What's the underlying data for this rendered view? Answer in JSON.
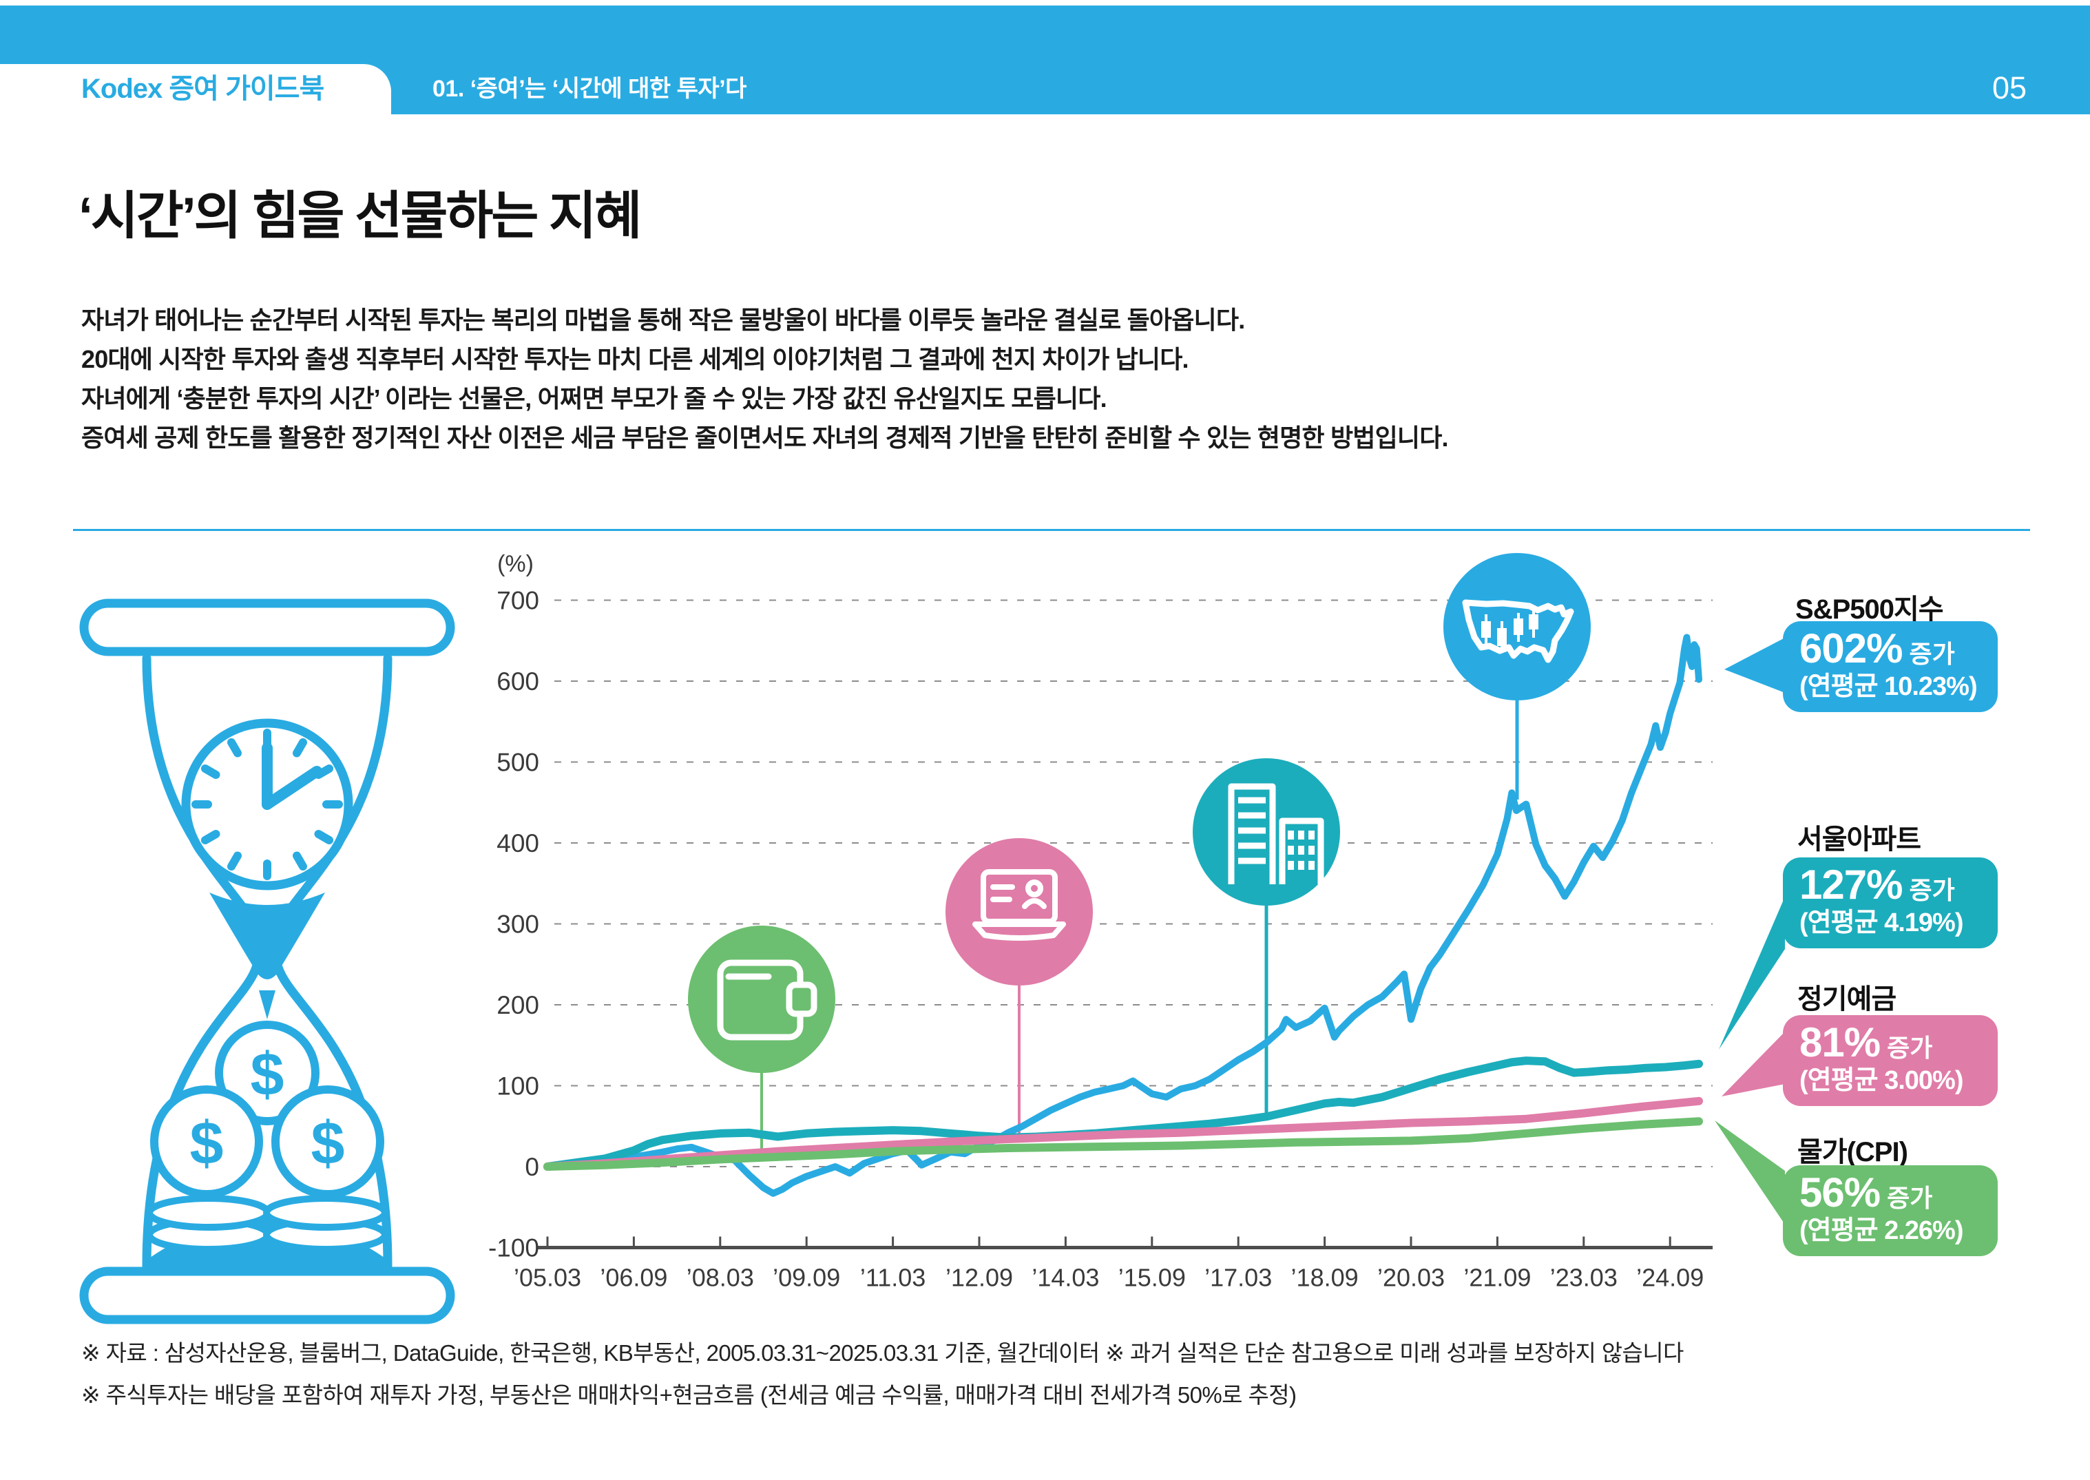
{
  "header": {
    "brand": "Kodex 증여 가이드북",
    "section": "01. ‘증여’는 ‘시간에 대한 투자’다",
    "page_number": "05",
    "accent": "#29ABE2"
  },
  "title": "‘시간’의 힘을 선물하는 지혜",
  "paragraph": [
    "자녀가 태어나는 순간부터 시작된 투자는 복리의 마법을 통해 작은 물방울이 바다를 이루듯 놀라운 결실로 돌아옵니다.",
    "20대에 시작한 투자와 출생 직후부터 시작한 투자는 마치 다른 세계의 이야기처럼 그 결과에 천지 차이가 납니다.",
    "자녀에게 ‘충분한 투자의 시간’ 이라는 선물은, 어쩌면 부모가 줄 수 있는 가장 값진 유산일지도 모릅니다.",
    "증여세 공제 한도를 활용한 정기적인 자산 이전은 세금 부담은 줄이면서도 자녀의 경제적 기반을 탄탄히 준비할 수 있는 현명한 방법입니다."
  ],
  "footnotes": [
    "※ 자료 : 삼성자산운용, 블룸버그, DataGuide, 한국은행, KB부동산, 2005.03.31~2025.03.31 기준, 월간데이터  ※ 과거 실적은 단순 참고용으로 미래 성과를 보장하지 않습니다",
    "※ 주식투자는 배당을 포함하여 재투자 가정, 부동산은 매매차익+현금흐름 (전세금 예금 수익률, 매매가격 대비 전세가격 50%로 추정)"
  ],
  "callouts": [
    {
      "title": "S&P500지수",
      "pct": "602%",
      "suffix": "증가",
      "avg": "(연평균 10.23%)",
      "color": "#29ABE2"
    },
    {
      "title": "서울아파트",
      "pct": "127%",
      "suffix": "증가",
      "avg": "(연평균 4.19%)",
      "color": "#1CADBC"
    },
    {
      "title": "정기예금",
      "pct": "81%",
      "suffix": "증가",
      "avg": "(연평균 3.00%)",
      "color": "#E07CA8"
    },
    {
      "title": "물가(CPI)",
      "pct": "56%",
      "suffix": "증가",
      "avg": "(연평균 2.26%)",
      "color": "#6CBF70"
    }
  ],
  "chart_data": {
    "type": "line",
    "title": "",
    "ylabel": "(%)",
    "ylim": [
      -100,
      700
    ],
    "y_ticks": [
      700,
      600,
      500,
      400,
      300,
      200,
      100,
      0,
      -100
    ],
    "x_ticks": [
      "’05.03",
      "’06.09",
      "’08.03",
      "’09.09",
      "’11.03",
      "’12.09",
      "’14.03",
      "’15.09",
      "’17.03",
      "’18.09",
      "’20.03",
      "’21.09",
      "’23.03",
      "’24.09"
    ],
    "x_range_years": [
      2005.25,
      2025.25
    ],
    "grid": true,
    "legend_position": "right",
    "series": [
      {
        "key": "sp500",
        "name": "S&P500지수",
        "color": "#29ABE2",
        "final_pct": 602,
        "cagr_pct": 10.23,
        "points": [
          [
            2005.25,
            0
          ],
          [
            2005.5,
            2
          ],
          [
            2005.75,
            5
          ],
          [
            2006.0,
            7
          ],
          [
            2006.25,
            8
          ],
          [
            2006.5,
            6
          ],
          [
            2006.75,
            12
          ],
          [
            2007.0,
            15
          ],
          [
            2007.25,
            18
          ],
          [
            2007.5,
            22
          ],
          [
            2007.75,
            24
          ],
          [
            2008.0,
            18
          ],
          [
            2008.25,
            12
          ],
          [
            2008.5,
            8
          ],
          [
            2008.75,
            -10
          ],
          [
            2009.0,
            -26
          ],
          [
            2009.17,
            -33
          ],
          [
            2009.33,
            -28
          ],
          [
            2009.5,
            -20
          ],
          [
            2009.75,
            -12
          ],
          [
            2010.0,
            -6
          ],
          [
            2010.25,
            0
          ],
          [
            2010.5,
            -8
          ],
          [
            2010.75,
            4
          ],
          [
            2011.0,
            10
          ],
          [
            2011.25,
            16
          ],
          [
            2011.5,
            20
          ],
          [
            2011.67,
            8
          ],
          [
            2011.75,
            2
          ],
          [
            2012.0,
            10
          ],
          [
            2012.25,
            18
          ],
          [
            2012.5,
            16
          ],
          [
            2012.75,
            26
          ],
          [
            2013.0,
            32
          ],
          [
            2013.25,
            42
          ],
          [
            2013.5,
            50
          ],
          [
            2013.75,
            60
          ],
          [
            2014.0,
            70
          ],
          [
            2014.25,
            78
          ],
          [
            2014.5,
            86
          ],
          [
            2014.75,
            92
          ],
          [
            2015.0,
            96
          ],
          [
            2015.25,
            100
          ],
          [
            2015.42,
            106
          ],
          [
            2015.58,
            98
          ],
          [
            2015.75,
            90
          ],
          [
            2016.0,
            86
          ],
          [
            2016.25,
            96
          ],
          [
            2016.5,
            100
          ],
          [
            2016.75,
            108
          ],
          [
            2017.0,
            120
          ],
          [
            2017.25,
            132
          ],
          [
            2017.5,
            142
          ],
          [
            2017.75,
            154
          ],
          [
            2018.0,
            170
          ],
          [
            2018.08,
            182
          ],
          [
            2018.25,
            172
          ],
          [
            2018.5,
            180
          ],
          [
            2018.75,
            196
          ],
          [
            2018.92,
            160
          ],
          [
            2019.0,
            168
          ],
          [
            2019.25,
            186
          ],
          [
            2019.5,
            200
          ],
          [
            2019.75,
            210
          ],
          [
            2020.0,
            228
          ],
          [
            2020.13,
            238
          ],
          [
            2020.25,
            182
          ],
          [
            2020.42,
            220
          ],
          [
            2020.58,
            246
          ],
          [
            2020.75,
            262
          ],
          [
            2021.0,
            290
          ],
          [
            2021.25,
            318
          ],
          [
            2021.5,
            348
          ],
          [
            2021.75,
            386
          ],
          [
            2021.92,
            430
          ],
          [
            2022.0,
            462
          ],
          [
            2022.08,
            440
          ],
          [
            2022.25,
            448
          ],
          [
            2022.42,
            398
          ],
          [
            2022.58,
            372
          ],
          [
            2022.75,
            356
          ],
          [
            2022.92,
            334
          ],
          [
            2023.08,
            352
          ],
          [
            2023.25,
            376
          ],
          [
            2023.42,
            396
          ],
          [
            2023.58,
            382
          ],
          [
            2023.75,
            402
          ],
          [
            2023.92,
            428
          ],
          [
            2024.08,
            462
          ],
          [
            2024.25,
            492
          ],
          [
            2024.42,
            522
          ],
          [
            2024.5,
            545
          ],
          [
            2024.58,
            518
          ],
          [
            2024.67,
            536
          ],
          [
            2024.75,
            560
          ],
          [
            2024.92,
            598
          ],
          [
            2025.0,
            640
          ],
          [
            2025.04,
            654
          ],
          [
            2025.08,
            630
          ],
          [
            2025.13,
            618
          ],
          [
            2025.17,
            645
          ],
          [
            2025.21,
            640
          ],
          [
            2025.25,
            602
          ]
        ]
      },
      {
        "key": "seoul_apt",
        "name": "서울아파트",
        "color": "#1CADBC",
        "final_pct": 127,
        "cagr_pct": 4.19,
        "points": [
          [
            2005.25,
            0
          ],
          [
            2005.75,
            5
          ],
          [
            2006.25,
            10
          ],
          [
            2006.75,
            20
          ],
          [
            2007.0,
            28
          ],
          [
            2007.25,
            33
          ],
          [
            2007.75,
            38
          ],
          [
            2008.25,
            41
          ],
          [
            2008.75,
            42
          ],
          [
            2009.25,
            37
          ],
          [
            2009.75,
            41
          ],
          [
            2010.25,
            43
          ],
          [
            2010.75,
            44
          ],
          [
            2011.25,
            45
          ],
          [
            2011.75,
            44
          ],
          [
            2012.25,
            41
          ],
          [
            2012.75,
            38
          ],
          [
            2013.25,
            36
          ],
          [
            2013.75,
            37
          ],
          [
            2014.25,
            39
          ],
          [
            2014.75,
            41
          ],
          [
            2015.25,
            44
          ],
          [
            2015.75,
            47
          ],
          [
            2016.25,
            50
          ],
          [
            2016.75,
            53
          ],
          [
            2017.25,
            57
          ],
          [
            2017.75,
            62
          ],
          [
            2018.25,
            70
          ],
          [
            2018.75,
            78
          ],
          [
            2019.0,
            80
          ],
          [
            2019.25,
            79
          ],
          [
            2019.75,
            86
          ],
          [
            2020.25,
            97
          ],
          [
            2020.75,
            108
          ],
          [
            2021.25,
            117
          ],
          [
            2021.75,
            125
          ],
          [
            2022.0,
            129
          ],
          [
            2022.25,
            131
          ],
          [
            2022.58,
            130
          ],
          [
            2022.83,
            122
          ],
          [
            2023.08,
            116
          ],
          [
            2023.33,
            117
          ],
          [
            2023.67,
            119
          ],
          [
            2024.0,
            120
          ],
          [
            2024.33,
            122
          ],
          [
            2024.67,
            123
          ],
          [
            2025.0,
            125
          ],
          [
            2025.25,
            127
          ]
        ]
      },
      {
        "key": "deposit",
        "name": "정기예금",
        "color": "#E07CA8",
        "final_pct": 81,
        "cagr_pct": 3.0,
        "points": [
          [
            2005.25,
            0
          ],
          [
            2006.25,
            4
          ],
          [
            2007.25,
            9
          ],
          [
            2008.25,
            14
          ],
          [
            2009.25,
            19
          ],
          [
            2010.25,
            23
          ],
          [
            2011.25,
            27
          ],
          [
            2012.25,
            31
          ],
          [
            2013.25,
            34
          ],
          [
            2014.25,
            37
          ],
          [
            2015.25,
            40
          ],
          [
            2016.25,
            42
          ],
          [
            2017.25,
            45
          ],
          [
            2018.25,
            48
          ],
          [
            2019.25,
            51
          ],
          [
            2020.25,
            54
          ],
          [
            2021.25,
            56
          ],
          [
            2022.25,
            59
          ],
          [
            2023.25,
            66
          ],
          [
            2024.25,
            74
          ],
          [
            2025.25,
            81
          ]
        ]
      },
      {
        "key": "cpi",
        "name": "물가(CPI)",
        "color": "#6CBF70",
        "final_pct": 56,
        "cagr_pct": 2.26,
        "points": [
          [
            2005.25,
            0
          ],
          [
            2006.25,
            2
          ],
          [
            2007.25,
            5
          ],
          [
            2008.25,
            9
          ],
          [
            2009.25,
            12
          ],
          [
            2010.25,
            15
          ],
          [
            2011.25,
            19
          ],
          [
            2012.25,
            21
          ],
          [
            2013.25,
            23
          ],
          [
            2014.25,
            24
          ],
          [
            2015.25,
            25
          ],
          [
            2016.25,
            26
          ],
          [
            2017.25,
            28
          ],
          [
            2018.25,
            30
          ],
          [
            2019.25,
            31
          ],
          [
            2020.25,
            32
          ],
          [
            2021.25,
            35
          ],
          [
            2022.25,
            41
          ],
          [
            2023.25,
            47
          ],
          [
            2024.25,
            52
          ],
          [
            2025.25,
            56
          ]
        ]
      }
    ],
    "markers": [
      {
        "icon": "wallet-icon",
        "color": "#6CBF70",
        "year": 2008.97
      },
      {
        "icon": "laptop-person-icon",
        "color": "#E07CA8",
        "year": 2013.44
      },
      {
        "icon": "buildings-icon",
        "color": "#1CADBC",
        "year": 2017.74
      },
      {
        "icon": "usa-map-candlestick-icon",
        "color": "#29ABE2",
        "year": 2022.09
      }
    ]
  }
}
